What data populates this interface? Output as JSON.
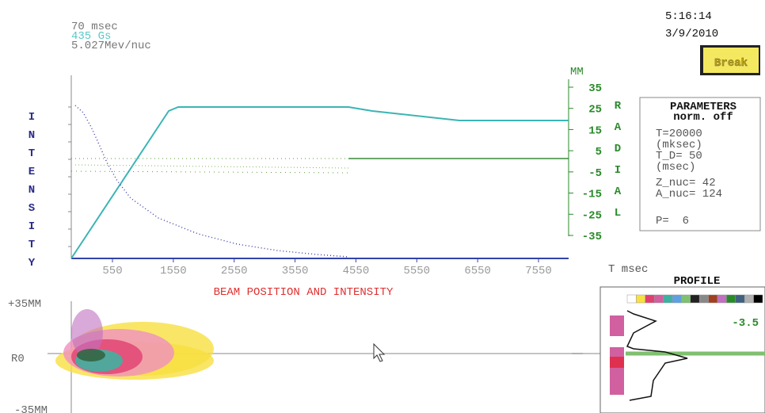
{
  "status": {
    "time": "70 msec",
    "field": "435 Gs",
    "energy": "5.027Mev/nuc"
  },
  "clock": {
    "time": "5:16:14",
    "date": "3/9/2010"
  },
  "break_button": "Break",
  "intensity_label": "INTENSITY",
  "radial": {
    "unit": "MM",
    "label": "RADIAL",
    "ticks": [
      35,
      25,
      15,
      5,
      -5,
      -15,
      -25,
      -35
    ]
  },
  "x_axis": {
    "ticks": [
      550,
      1550,
      2550,
      3550,
      4550,
      5550,
      6550,
      7550
    ],
    "unit": "T msec",
    "title": "BEAM POSITION AND INTENSITY"
  },
  "parameters": {
    "title": "PARAMETERS",
    "subtitle": "norm. off",
    "lines": [
      "T=20000",
      "(mksec)",
      "T_D= 50",
      "(msec)",
      "Z_nuc= 42",
      "A_nuc= 124",
      "P=  6"
    ]
  },
  "profile": {
    "title": "PROFILE",
    "value": "-3.5"
  },
  "lower": {
    "top": "+35MM",
    "middle": "R0",
    "bottom": "-35MM"
  }
}
